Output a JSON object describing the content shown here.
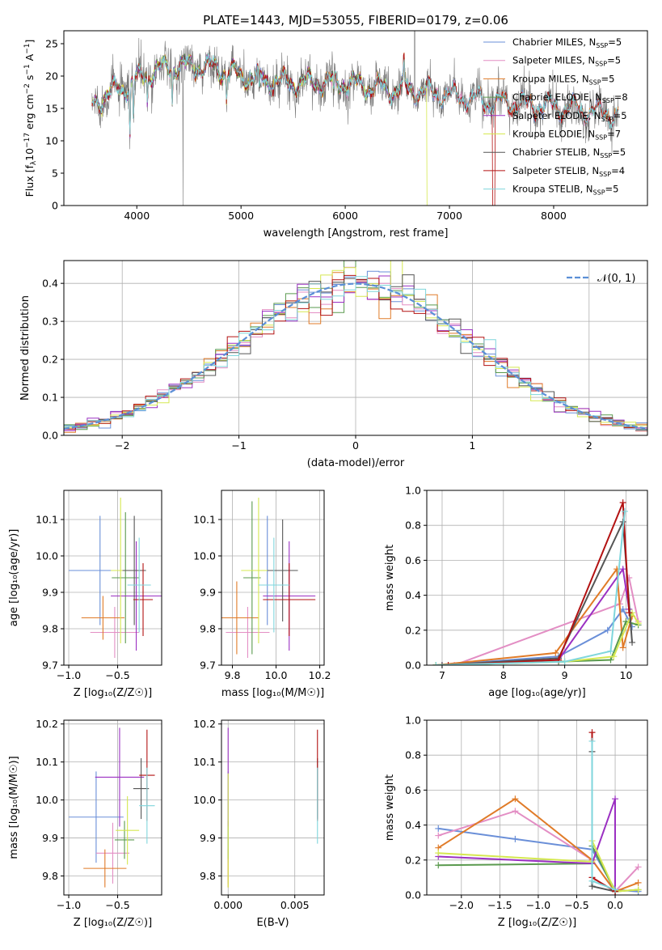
{
  "figure": {
    "title": "PLATE=1443, MJD=53055, FIBERID=0179, z=0.06"
  },
  "colors": {
    "Chabrier MILES": "#6a8fd8",
    "Salpeter MILES": "#e38ec4",
    "Kroupa MILES": "#e07b28",
    "Chabrier ELODIE": "#5a9a4e",
    "Salpeter ELODIE": "#9b30c2",
    "Kroupa ELODIE": "#d5e850",
    "Chabrier STELIB": "#555555",
    "Salpeter STELIB": "#b31212",
    "Kroupa STELIB": "#7fd6dc",
    "data": "#7a7a7a",
    "normal": "#5b8fd6"
  },
  "chart_data": [
    {
      "id": "spectrum",
      "type": "line",
      "xlabel": "wavelength [Angstrom, rest frame]",
      "ylabel": "Flux [f",
      "ylabel_sub": "λ",
      "ylabel_rest": "10",
      "ylabel_exp": "−17",
      "ylabel_tail": " erg cm",
      "ylabel_exp2": "−2",
      "ylabel_tail2": " s",
      "ylabel_exp3": "−1",
      "ylabel_tail3": " A",
      "ylabel_exp4": "−1",
      "ylabel_end": "]",
      "xlim": [
        3300,
        8900
      ],
      "ylim": [
        0,
        27
      ],
      "xticks": [
        "4000",
        "5000",
        "6000",
        "7000",
        "8000"
      ],
      "xtick_values": [
        4000,
        5000,
        6000,
        7000,
        8000
      ],
      "yticks": [
        "0",
        "5",
        "10",
        "15",
        "20",
        "25"
      ],
      "ytick_values": [
        0,
        5,
        10,
        15,
        20,
        25
      ],
      "continuum": [
        [
          3570,
          15.5
        ],
        [
          3700,
          17
        ],
        [
          3850,
          18
        ],
        [
          4000,
          19.5
        ],
        [
          4200,
          21
        ],
        [
          4400,
          21.5
        ],
        [
          4600,
          21.5
        ],
        [
          4800,
          21
        ],
        [
          5000,
          20
        ],
        [
          5200,
          19.5
        ],
        [
          5400,
          19
        ],
        [
          5600,
          19
        ],
        [
          5800,
          19
        ],
        [
          6000,
          19
        ],
        [
          6200,
          18.5
        ],
        [
          6400,
          18
        ],
        [
          6600,
          18
        ],
        [
          6800,
          17.5
        ],
        [
          7000,
          17
        ],
        [
          7200,
          16.5
        ],
        [
          7400,
          16
        ],
        [
          7600,
          15.8
        ],
        [
          7800,
          15.5
        ],
        [
          8000,
          15.3
        ],
        [
          8200,
          15
        ],
        [
          8400,
          14.5
        ],
        [
          8600,
          14
        ]
      ],
      "legend": {
        "placement": "upper right",
        "entries": [
          {
            "name": "Chabrier MILES",
            "nssp": "5"
          },
          {
            "name": "Salpeter MILES",
            "nssp": "5"
          },
          {
            "name": "Kroupa MILES",
            "nssp": "5"
          },
          {
            "name": "Chabrier ELODIE",
            "nssp": "8"
          },
          {
            "name": "Salpeter ELODIE",
            "nssp": "5"
          },
          {
            "name": "Kroupa ELODIE",
            "nssp": "7"
          },
          {
            "name": "Chabrier STELIB",
            "nssp": "5"
          },
          {
            "name": "Salpeter STELIB",
            "nssp": "4"
          },
          {
            "name": "Kroupa STELIB",
            "nssp": "5"
          }
        ],
        "prefix": ", N",
        "sub": "SSP",
        "suffix": "="
      }
    },
    {
      "id": "residuals",
      "type": "histogram",
      "xlabel": "(data-model)/error",
      "ylabel": "Normed distribution",
      "xlim": [
        -2.5,
        2.5
      ],
      "ylim": [
        0,
        0.46
      ],
      "xticks": [
        "−2",
        "−1",
        "0",
        "1",
        "2"
      ],
      "xtick_values": [
        -2,
        -1,
        0,
        1,
        2
      ],
      "yticks": [
        "0.0",
        "0.1",
        "0.2",
        "0.3",
        "0.4"
      ],
      "ytick_values": [
        0,
        0.1,
        0.2,
        0.3,
        0.4
      ],
      "grid": true,
      "bin_width": 0.1,
      "legend": {
        "placement": "upper right",
        "label": "𝒩(0, 1)"
      }
    },
    {
      "id": "age-vs-Z",
      "type": "errorbar",
      "xlabel": "Z [log₁₀(Z/Z☉)]",
      "ylabel": "age  [log₁₀(age/yr)]",
      "xlim": [
        -1.05,
        -0.05
      ],
      "ylim": [
        9.7,
        10.18
      ],
      "xticks": [
        "−1.0",
        "−0.5"
      ],
      "xtick_values": [
        -1.0,
        -0.5
      ],
      "yticks": [
        "9.7",
        "9.8",
        "9.9",
        "10.0",
        "10.1"
      ],
      "ytick_values": [
        9.7,
        9.8,
        9.9,
        10.0,
        10.1
      ],
      "grid": true,
      "points": [
        {
          "series": "Chabrier MILES",
          "x": -0.68,
          "xerr": 0.32,
          "y": 9.96,
          "yerr": 0.15
        },
        {
          "series": "Salpeter MILES",
          "x": -0.53,
          "xerr": 0.25,
          "y": 9.79,
          "yerr": 0.07
        },
        {
          "series": "Kroupa MILES",
          "x": -0.65,
          "xerr": 0.22,
          "y": 9.83,
          "yerr": 0.06
        },
        {
          "series": "Chabrier ELODIE",
          "x": -0.42,
          "xerr": 0.14,
          "y": 9.94,
          "yerr": 0.18
        },
        {
          "series": "Salpeter ELODIE",
          "x": -0.31,
          "xerr": 0.26,
          "y": 9.89,
          "yerr": 0.15
        },
        {
          "series": "Kroupa ELODIE",
          "x": -0.47,
          "xerr": 0.1,
          "y": 9.96,
          "yerr": 0.2
        },
        {
          "series": "Chabrier STELIB",
          "x": -0.33,
          "xerr": 0.12,
          "y": 9.96,
          "yerr": 0.15
        },
        {
          "series": "Salpeter STELIB",
          "x": -0.24,
          "xerr": 0.1,
          "y": 9.88,
          "yerr": 0.1
        },
        {
          "series": "Kroupa STELIB",
          "x": -0.28,
          "xerr": 0.12,
          "y": 9.92,
          "yerr": 0.13
        }
      ]
    },
    {
      "id": "age-vs-mass",
      "type": "errorbar",
      "xlabel": "mass [log₁₀(M/M☉)]",
      "ylabel": "",
      "xlim": [
        9.75,
        10.22
      ],
      "ylim": [
        9.7,
        10.18
      ],
      "xticks": [
        "9.8",
        "10.0",
        "10.2"
      ],
      "xtick_values": [
        9.8,
        10.0,
        10.2
      ],
      "yticks": [
        "9.7",
        "9.8",
        "9.9",
        "10.0",
        "10.1"
      ],
      "ytick_values": [
        9.7,
        9.8,
        9.9,
        10.0,
        10.1
      ],
      "grid": true,
      "points": [
        {
          "series": "Chabrier MILES",
          "x": 9.96,
          "xerr": 0.07,
          "y": 9.96,
          "yerr": 0.15
        },
        {
          "series": "Salpeter MILES",
          "x": 9.87,
          "xerr": 0.1,
          "y": 9.79,
          "yerr": 0.07
        },
        {
          "series": "Kroupa MILES",
          "x": 9.82,
          "xerr": 0.1,
          "y": 9.83,
          "yerr": 0.1
        },
        {
          "series": "Chabrier ELODIE",
          "x": 9.89,
          "xerr": 0.04,
          "y": 9.94,
          "yerr": 0.21
        },
        {
          "series": "Salpeter ELODIE",
          "x": 10.06,
          "xerr": 0.12,
          "y": 9.89,
          "yerr": 0.15
        },
        {
          "series": "Kroupa ELODIE",
          "x": 9.92,
          "xerr": 0.08,
          "y": 9.96,
          "yerr": 0.2
        },
        {
          "series": "Chabrier STELIB",
          "x": 10.03,
          "xerr": 0.07,
          "y": 9.96,
          "yerr": 0.14
        },
        {
          "series": "Salpeter STELIB",
          "x": 10.06,
          "xerr": 0.12,
          "y": 9.88,
          "yerr": 0.1
        },
        {
          "series": "Kroupa STELIB",
          "x": 9.99,
          "xerr": 0.07,
          "y": 9.92,
          "yerr": 0.13
        }
      ]
    },
    {
      "id": "weight-vs-age",
      "type": "line",
      "xlabel": "age  [log₁₀(age/yr)]",
      "ylabel": "mass weight",
      "xlim": [
        6.75,
        10.35
      ],
      "ylim": [
        0,
        1
      ],
      "xticks": [
        "7",
        "8",
        "9",
        "10"
      ],
      "xtick_values": [
        7,
        8,
        9,
        10
      ],
      "yticks": [
        "0.0",
        "0.2",
        "0.4",
        "0.6",
        "0.8",
        "1.0"
      ],
      "ytick_values": [
        0,
        0.2,
        0.4,
        0.6,
        0.8,
        1.0
      ],
      "grid": true,
      "series": [
        {
          "series": "Chabrier MILES",
          "x": [
            6.9,
            8.9,
            9.7,
            9.95,
            10.1
          ],
          "y": [
            0.0,
            0.05,
            0.2,
            0.32,
            0.22
          ]
        },
        {
          "series": "Salpeter MILES",
          "x": [
            7.2,
            9.9,
            10.05,
            10.2
          ],
          "y": [
            0.0,
            0.35,
            0.5,
            0.25
          ]
        },
        {
          "series": "Kroupa MILES",
          "x": [
            6.9,
            8.85,
            9.85,
            9.95,
            10.1
          ],
          "y": [
            0.0,
            0.07,
            0.55,
            0.1,
            0.28
          ]
        },
        {
          "series": "Chabrier ELODIE",
          "x": [
            6.9,
            8.9,
            9.75,
            10.0,
            10.2
          ],
          "y": [
            0.0,
            0.02,
            0.03,
            0.25,
            0.23
          ]
        },
        {
          "series": "Salpeter ELODIE",
          "x": [
            7.0,
            8.9,
            9.95,
            10.05
          ],
          "y": [
            0.0,
            0.03,
            0.55,
            0.32
          ]
        },
        {
          "series": "Kroupa ELODIE",
          "x": [
            6.9,
            9.0,
            9.8,
            10.1,
            10.2
          ],
          "y": [
            0.0,
            0.02,
            0.05,
            0.3,
            0.24
          ]
        },
        {
          "series": "Chabrier STELIB",
          "x": [
            7.0,
            8.9,
            9.95,
            10.1
          ],
          "y": [
            0.0,
            0.04,
            0.82,
            0.13
          ]
        },
        {
          "series": "Salpeter STELIB",
          "x": [
            7.1,
            8.9,
            9.95,
            10.05
          ],
          "y": [
            0.0,
            0.03,
            0.93,
            0.3
          ]
        },
        {
          "series": "Kroupa STELIB",
          "x": [
            6.9,
            9.0,
            9.75,
            9.98
          ],
          "y": [
            0.0,
            0.02,
            0.08,
            0.88
          ]
        }
      ]
    },
    {
      "id": "mass-vs-Z",
      "type": "errorbar",
      "xlabel": "Z [log₁₀(Z/Z☉)]",
      "ylabel": "mass [log₁₀(M/M☉)]",
      "xlim": [
        -1.05,
        -0.05
      ],
      "ylim": [
        9.75,
        10.21
      ],
      "xticks": [
        "−1.0",
        "−0.5"
      ],
      "xtick_values": [
        -1.0,
        -0.5
      ],
      "yticks": [
        "9.8",
        "9.9",
        "10.0",
        "10.1",
        "10.2"
      ],
      "ytick_values": [
        9.8,
        9.9,
        10.0,
        10.1,
        10.2
      ],
      "grid": true,
      "points": [
        {
          "series": "Chabrier MILES",
          "x": -0.72,
          "xerr": 0.28,
          "y": 9.955,
          "yerr": 0.12
        },
        {
          "series": "Salpeter MILES",
          "x": -0.55,
          "xerr": 0.17,
          "y": 9.86,
          "yerr": 0.08
        },
        {
          "series": "Kroupa MILES",
          "x": -0.63,
          "xerr": 0.22,
          "y": 9.82,
          "yerr": 0.05
        },
        {
          "series": "Chabrier ELODIE",
          "x": -0.43,
          "xerr": 0.1,
          "y": 9.895,
          "yerr": 0.05
        },
        {
          "series": "Salpeter ELODIE",
          "x": -0.48,
          "xerr": 0.25,
          "y": 10.06,
          "yerr": 0.13
        },
        {
          "series": "Kroupa ELODIE",
          "x": -0.4,
          "xerr": 0.12,
          "y": 9.92,
          "yerr": 0.09
        },
        {
          "series": "Chabrier STELIB",
          "x": -0.26,
          "xerr": 0.08,
          "y": 10.03,
          "yerr": 0.08
        },
        {
          "series": "Salpeter STELIB",
          "x": -0.2,
          "xerr": 0.08,
          "y": 10.065,
          "yerr": 0.12
        },
        {
          "series": "Kroupa STELIB",
          "x": -0.2,
          "xerr": 0.08,
          "y": 9.985,
          "yerr": 0.1
        }
      ]
    },
    {
      "id": "mass-vs-EBV",
      "type": "errorbar",
      "xlabel": "E(B-V)",
      "ylabel": "",
      "xlim": [
        -0.0005,
        0.0072
      ],
      "ylim": [
        9.75,
        10.21
      ],
      "xticks": [
        "0.000",
        "0.005"
      ],
      "xtick_values": [
        0.0,
        0.005
      ],
      "yticks": [
        "9.8",
        "9.9",
        "10.0",
        "10.1",
        "10.2"
      ],
      "ytick_values": [
        9.8,
        9.9,
        10.0,
        10.1,
        10.2
      ],
      "grid": true,
      "points": [
        {
          "series": "Chabrier MILES",
          "x": 0.0,
          "xerr": 0,
          "y": 9.955,
          "yerr": 0.12
        },
        {
          "series": "Salpeter MILES",
          "x": 0.0,
          "xerr": 0,
          "y": 9.86,
          "yerr": 0.08
        },
        {
          "series": "Kroupa MILES",
          "x": 0.0,
          "xerr": 0,
          "y": 9.82,
          "yerr": 0.05
        },
        {
          "series": "Chabrier ELODIE",
          "x": 0.0,
          "xerr": 0,
          "y": 9.895,
          "yerr": 0.05
        },
        {
          "series": "Salpeter ELODIE",
          "x": 0.0,
          "xerr": 0,
          "y": 10.06,
          "yerr": 0.13
        },
        {
          "series": "Kroupa ELODIE",
          "x": 0.0,
          "xerr": 0,
          "y": 9.92,
          "yerr": 0.15
        },
        {
          "series": "Chabrier STELIB",
          "x": 0.0067,
          "xerr": 0,
          "y": 10.03,
          "yerr": 0.08
        },
        {
          "series": "Salpeter STELIB",
          "x": 0.0067,
          "xerr": 0,
          "y": 10.065,
          "yerr": 0.12
        },
        {
          "series": "Kroupa STELIB",
          "x": 0.0067,
          "xerr": 0,
          "y": 9.985,
          "yerr": 0.1
        }
      ]
    },
    {
      "id": "weight-vs-Z",
      "type": "line",
      "xlabel": "Z [log₁₀(Z/Z☉)]",
      "ylabel": "mass weight",
      "xlim": [
        -2.45,
        0.42
      ],
      "ylim": [
        0,
        1
      ],
      "xticks": [
        "−2.0",
        "−1.5",
        "−1.0",
        "−0.5",
        "0.0"
      ],
      "xtick_values": [
        -2.0,
        -1.5,
        -1.0,
        -0.5,
        0.0
      ],
      "yticks": [
        "0.0",
        "0.2",
        "0.4",
        "0.6",
        "0.8",
        "1.0"
      ],
      "ytick_values": [
        0,
        0.2,
        0.4,
        0.6,
        0.8,
        1.0
      ],
      "grid": true,
      "series": [
        {
          "series": "Chabrier MILES",
          "x": [
            -2.3,
            -1.3,
            -0.3,
            0.0,
            0.3
          ],
          "y": [
            0.38,
            0.32,
            0.26,
            0.03,
            0.02
          ]
        },
        {
          "series": "Salpeter MILES",
          "x": [
            -2.3,
            -1.3,
            -0.3,
            0.0,
            0.3
          ],
          "y": [
            0.34,
            0.48,
            0.2,
            0.02,
            0.16
          ]
        },
        {
          "series": "Kroupa MILES",
          "x": [
            -2.3,
            -1.3,
            -0.3,
            0.0,
            0.3
          ],
          "y": [
            0.27,
            0.55,
            0.2,
            0.02,
            0.07
          ]
        },
        {
          "series": "Chabrier ELODIE",
          "x": [
            -2.3,
            -0.3,
            -0.3,
            0.0,
            0.3
          ],
          "y": [
            0.17,
            0.18,
            0.28,
            0.02,
            0.03
          ]
        },
        {
          "series": "Salpeter ELODIE",
          "x": [
            -2.3,
            -0.3,
            0.0,
            0.0
          ],
          "y": [
            0.22,
            0.18,
            0.55,
            0.02
          ]
        },
        {
          "series": "Kroupa ELODIE",
          "x": [
            -2.3,
            -0.3,
            -0.3,
            0.0,
            0.3
          ],
          "y": [
            0.24,
            0.19,
            0.31,
            0.02,
            0.03
          ]
        },
        {
          "series": "Chabrier STELIB",
          "x": [
            -0.3,
            -0.3,
            0.0
          ],
          "y": [
            0.82,
            0.05,
            0.02
          ]
        },
        {
          "series": "Salpeter STELIB",
          "x": [
            -0.3,
            -0.3,
            0.0
          ],
          "y": [
            0.93,
            0.1,
            0.02
          ]
        },
        {
          "series": "Kroupa STELIB",
          "x": [
            -0.3,
            -0.3,
            0.0
          ],
          "y": [
            0.88,
            0.08,
            0.03
          ]
        }
      ]
    }
  ]
}
